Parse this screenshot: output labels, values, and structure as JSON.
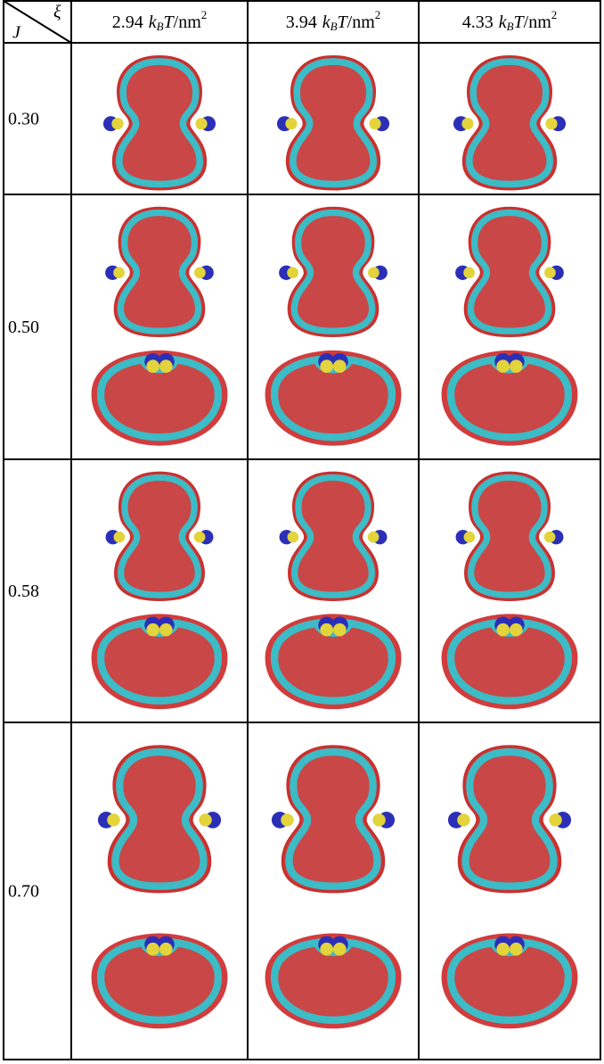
{
  "table": {
    "corner": {
      "column_symbol": "ξ",
      "row_symbol": "J"
    },
    "columns": [
      {
        "number": "2.94",
        "k": "k",
        "sub": "B",
        "t": "T",
        "rest": "/nm",
        "sup": "2"
      },
      {
        "number": "3.94",
        "k": "k",
        "sub": "B",
        "t": "T",
        "rest": "/nm",
        "sup": "2"
      },
      {
        "number": "4.33",
        "k": "k",
        "sub": "B",
        "t": "T",
        "rest": "/nm",
        "sup": "2"
      }
    ],
    "rows": [
      "0.30",
      "0.50",
      "0.58",
      "0.70"
    ]
  }
}
